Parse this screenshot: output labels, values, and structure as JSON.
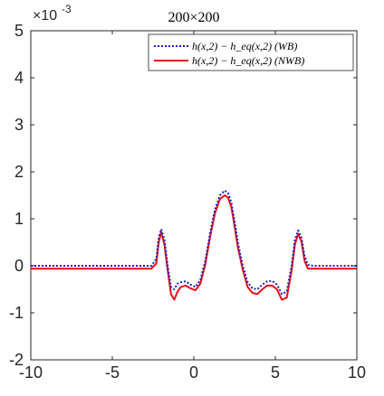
{
  "chart_data": {
    "type": "line",
    "title": "200×200",
    "xlabel": "",
    "ylabel": "",
    "xlim": [
      -10,
      10
    ],
    "ylim": [
      -2,
      5
    ],
    "y_scale_exponent": "-3",
    "xticks": [
      -10,
      -5,
      0,
      5,
      10
    ],
    "yticks": [
      -2,
      -1,
      0,
      1,
      2,
      3,
      4,
      5
    ],
    "grid": false,
    "legend_position": "top-right",
    "series": [
      {
        "name": "h(x,2) − h_eq(x,2) (WB)",
        "color": "#1f1fbf",
        "style": "dotted",
        "x": [
          -10,
          -2.6,
          -2.3,
          -2.15,
          -2.0,
          -1.8,
          -1.6,
          -1.4,
          -1.2,
          -1.0,
          -0.8,
          -0.5,
          -0.2,
          0.1,
          0.4,
          0.7,
          1.0,
          1.3,
          1.6,
          1.9,
          2.1,
          2.3,
          2.5,
          2.7,
          3.0,
          3.3,
          3.6,
          3.9,
          4.2,
          4.5,
          4.8,
          5.1,
          5.4,
          5.7,
          6.0,
          6.2,
          6.4,
          6.6,
          6.8,
          7.0,
          7.3,
          10
        ],
        "y": [
          0.0,
          0.0,
          0.15,
          0.6,
          0.78,
          0.55,
          0.0,
          -0.45,
          -0.5,
          -0.38,
          -0.35,
          -0.33,
          -0.4,
          -0.45,
          -0.3,
          0.1,
          0.7,
          1.2,
          1.5,
          1.6,
          1.55,
          1.35,
          0.95,
          0.5,
          0.0,
          -0.35,
          -0.48,
          -0.5,
          -0.4,
          -0.33,
          -0.32,
          -0.4,
          -0.6,
          -0.55,
          0.0,
          0.55,
          0.75,
          0.6,
          0.2,
          0.02,
          0.0,
          0.0
        ]
      },
      {
        "name": "h(x,2) − h_eq(x,2) (NWB)",
        "color": "#e8101a",
        "style": "solid",
        "x": [
          -10,
          -2.6,
          -2.3,
          -2.15,
          -2.0,
          -1.8,
          -1.6,
          -1.4,
          -1.2,
          -1.0,
          -0.8,
          -0.5,
          -0.2,
          0.1,
          0.4,
          0.7,
          1.0,
          1.3,
          1.6,
          1.9,
          2.1,
          2.3,
          2.5,
          2.7,
          3.0,
          3.3,
          3.6,
          3.9,
          4.2,
          4.5,
          4.8,
          5.1,
          5.4,
          5.7,
          6.0,
          6.2,
          6.4,
          6.6,
          6.8,
          7.0,
          7.3,
          10
        ],
        "y": [
          -0.06,
          -0.06,
          0.05,
          0.5,
          0.72,
          0.45,
          -0.1,
          -0.6,
          -0.72,
          -0.55,
          -0.45,
          -0.42,
          -0.48,
          -0.52,
          -0.38,
          0.02,
          0.62,
          1.12,
          1.42,
          1.5,
          1.45,
          1.25,
          0.85,
          0.4,
          -0.08,
          -0.45,
          -0.58,
          -0.6,
          -0.5,
          -0.42,
          -0.42,
          -0.5,
          -0.72,
          -0.68,
          -0.1,
          0.45,
          0.68,
          0.52,
          0.1,
          -0.06,
          -0.06,
          -0.06
        ]
      }
    ]
  }
}
